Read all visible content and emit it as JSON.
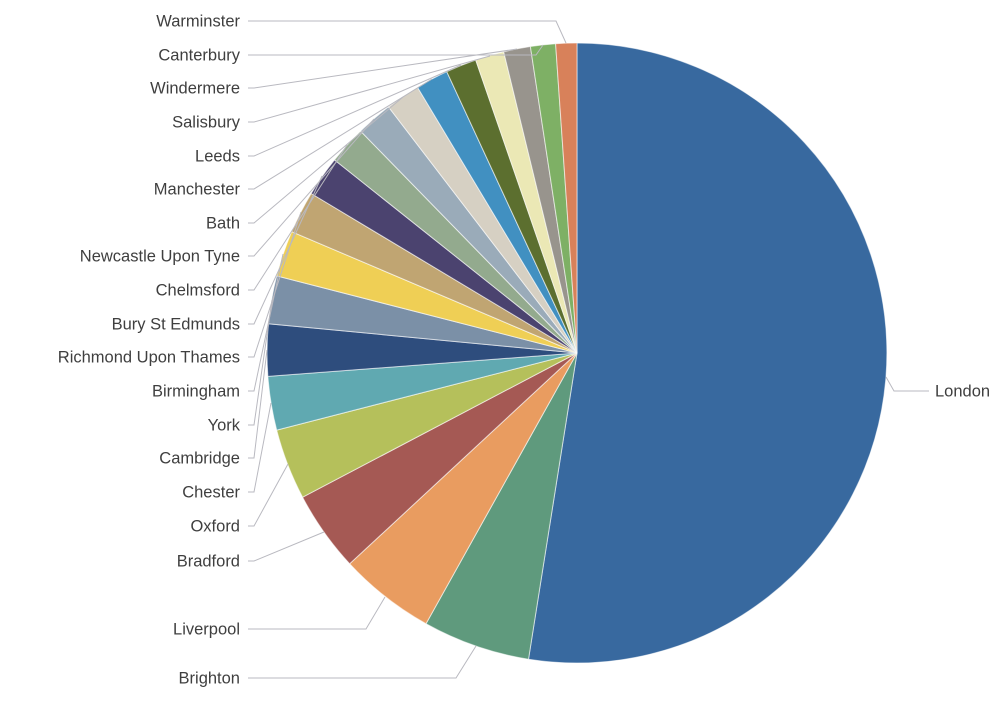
{
  "chart_data": {
    "type": "pie",
    "title": "",
    "legend_position": "none",
    "grid": false,
    "label_color": "#3f3f3f",
    "leader_line_color": "#b9b9c0",
    "background_color": "#ffffff",
    "slices": [
      {
        "label": "London",
        "value": 52.5,
        "color": "#38699f"
      },
      {
        "label": "Brighton",
        "value": 5.6,
        "color": "#5f9a7d"
      },
      {
        "label": "Liverpool",
        "value": 5.0,
        "color": "#e99c60"
      },
      {
        "label": "Bradford",
        "value": 4.2,
        "color": "#a55954"
      },
      {
        "label": "Oxford",
        "value": 3.7,
        "color": "#b5c05b"
      },
      {
        "label": "Chester",
        "value": 2.8,
        "color": "#60a9b1"
      },
      {
        "label": "Cambridge",
        "value": 2.7,
        "color": "#2e4d7d"
      },
      {
        "label": "York",
        "value": 2.5,
        "color": "#7b90a7"
      },
      {
        "label": "Birmingham",
        "value": 2.4,
        "color": "#efcf55"
      },
      {
        "label": "Richmond Upon Thames",
        "value": 2.2,
        "color": "#c0a572"
      },
      {
        "label": "Bury St Edmunds",
        "value": 2.1,
        "color": "#4b436f"
      },
      {
        "label": "Chelmsford",
        "value": 2.0,
        "color": "#93aa8e"
      },
      {
        "label": "Newcastle Upon Tyne",
        "value": 1.9,
        "color": "#9aabb9"
      },
      {
        "label": "Bath",
        "value": 1.8,
        "color": "#d6d0c3"
      },
      {
        "label": "Manchester",
        "value": 1.7,
        "color": "#4190c1"
      },
      {
        "label": "Leeds",
        "value": 1.6,
        "color": "#5c6f2f"
      },
      {
        "label": "Salisbury",
        "value": 1.5,
        "color": "#ebe8b5"
      },
      {
        "label": "Windermere",
        "value": 1.4,
        "color": "#98948d"
      },
      {
        "label": "Canterbury",
        "value": 1.3,
        "color": "#7eb065"
      },
      {
        "label": "Warminster",
        "value": 1.1,
        "color": "#d8815a"
      }
    ]
  }
}
